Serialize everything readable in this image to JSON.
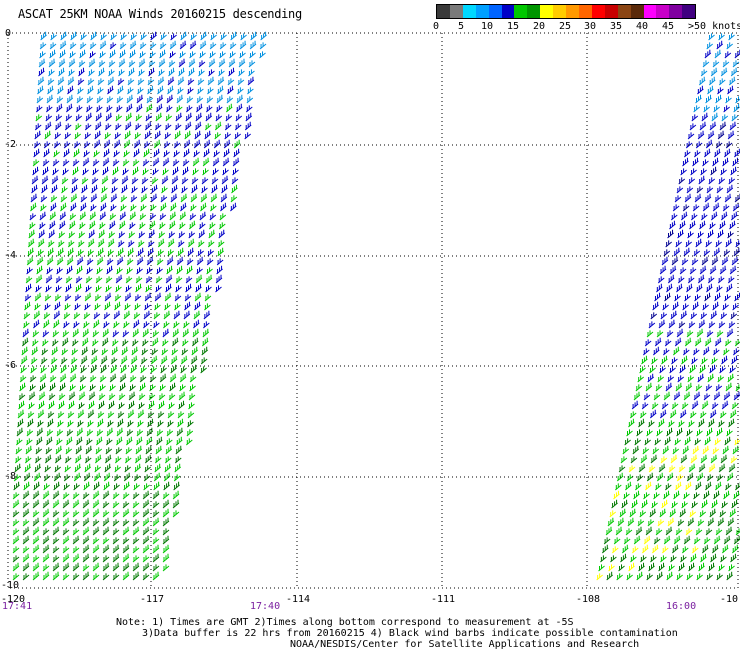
{
  "title": "ASCAT 25KM NOAA Winds 20160215 descending",
  "legend": {
    "labels": [
      "0",
      "5",
      "10",
      "15",
      "20",
      "25",
      "30",
      "35",
      "40",
      "45",
      ">50 knots"
    ],
    "colors": [
      "#3a3a3a",
      "#7a7a7a",
      "#00d8ff",
      "#00a0ff",
      "#0064ff",
      "#0000c8",
      "#00c800",
      "#009600",
      "#ffff00",
      "#ffcc00",
      "#ff9900",
      "#ff6600",
      "#ff0000",
      "#c80000",
      "#8b4513",
      "#5a2a0a",
      "#ff00ff",
      "#c800c8",
      "#8000a0",
      "#400080"
    ]
  },
  "axes": {
    "lon_ticks": [
      "-120",
      "-117",
      "-114",
      "-111",
      "-108",
      "-10"
    ],
    "lat_ticks": [
      "0",
      "-2",
      "-4",
      "-6",
      "-8",
      "-10"
    ]
  },
  "time_labels": [
    "17:41",
    "17:40",
    "16:00"
  ],
  "notes": [
    "Note: 1) Times are GMT 2)Times along bottom correspond to measurement at -5S",
    "3)Data buffer is 22 hrs from 20160215 4) Black wind barbs indicate possible contamination",
    "NOAA/NESDIS/Center for Satellite Applications and Research"
  ],
  "wind_colors": {
    "light_blue": "#0090e0",
    "blue": "#0000c8",
    "dark_blue": "#000090",
    "green": "#00c800",
    "dark_green": "#007800",
    "yellow": "#ffff00"
  }
}
